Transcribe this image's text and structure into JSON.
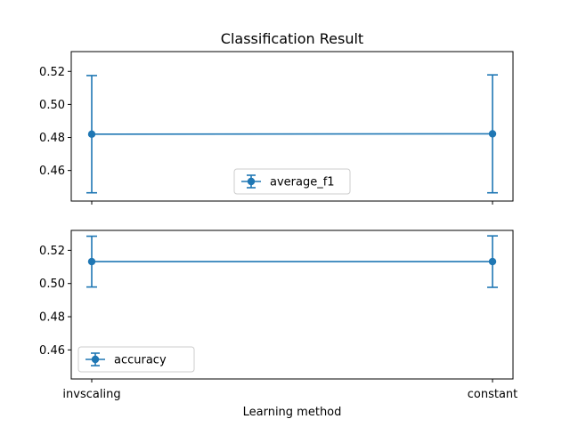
{
  "chart_data": {
    "type": "line",
    "title": "Classification Result",
    "xlabel": "Learning method",
    "categories": [
      "invscaling",
      "constant"
    ],
    "color": "#1f77b4",
    "subplots": [
      {
        "name": "average_f1",
        "values": [
          0.482,
          0.4822
        ],
        "errors": [
          0.0355,
          0.0357
        ],
        "ylim": [
          0.4415,
          0.532
        ],
        "yticks": [
          "0.46",
          "0.48",
          "0.50",
          "0.52"
        ],
        "legend_loc": "lower center"
      },
      {
        "name": "accuracy",
        "values": [
          0.5132,
          0.5132
        ],
        "errors": [
          0.0153,
          0.0155
        ],
        "ylim": [
          0.4425,
          0.532
        ],
        "yticks": [
          "0.46",
          "0.48",
          "0.50",
          "0.52"
        ],
        "legend_loc": "lower left"
      }
    ]
  }
}
